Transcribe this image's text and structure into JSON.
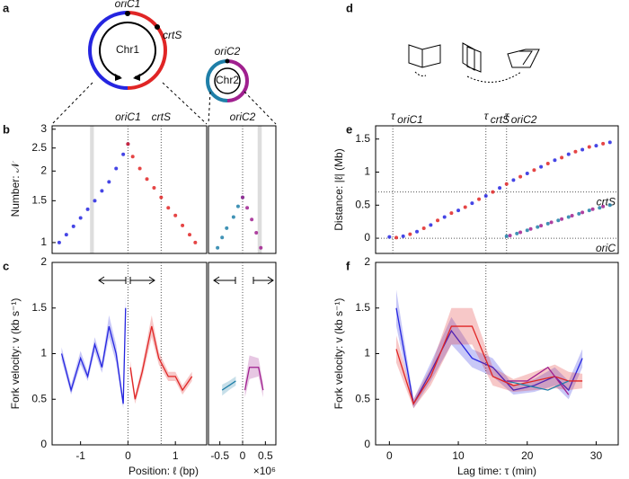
{
  "diagram_a": {
    "letter": "a",
    "labels": [
      "oriC1",
      "crtS",
      "Chr1",
      "oriC2",
      "Chr2"
    ]
  },
  "diagram_d": {
    "letter": "d"
  },
  "chart_data": [
    {
      "type": "scatter",
      "panel": "b",
      "ylabel": "Number: 𝒩",
      "log_y": true,
      "xlim": [
        -1.6,
        1.66
      ],
      "ylim": [
        0.9,
        3.1
      ],
      "yticks": [
        1,
        1.5,
        2,
        2.5,
        3
      ],
      "vlines": [
        {
          "x": 0,
          "label": "oriC1"
        },
        {
          "x": 0.7,
          "label": "crtS"
        }
      ],
      "shaded": [
        [
          -0.8,
          -0.72
        ]
      ],
      "series": [
        {
          "color": "#2525e0",
          "x": [
            -1.45,
            -1.3,
            -1.15,
            -1.0,
            -0.85,
            -0.7,
            -0.55,
            -0.4,
            -0.25,
            -0.1,
            0
          ],
          "values": [
            1.0,
            1.08,
            1.17,
            1.27,
            1.38,
            1.5,
            1.65,
            1.8,
            2.05,
            2.35,
            2.6
          ]
        },
        {
          "color": "#e02525",
          "x": [
            0,
            0.1,
            0.25,
            0.4,
            0.55,
            0.7,
            0.85,
            1.0,
            1.15,
            1.3,
            1.42
          ],
          "values": [
            2.6,
            2.3,
            2.05,
            1.85,
            1.7,
            1.55,
            1.4,
            1.3,
            1.18,
            1.08,
            1.0
          ]
        }
      ]
    },
    {
      "type": "scatter",
      "log_y": true,
      "xlim": [
        -0.75,
        0.73
      ],
      "ylim": [
        0.9,
        3.1
      ],
      "vlines": [
        {
          "x": 0,
          "label": "oriC2"
        }
      ],
      "shaded": [
        [
          0.33,
          0.42
        ]
      ],
      "series": [
        {
          "color": "#1f7fa8",
          "x": [
            -0.55,
            -0.45,
            -0.35,
            -0.2,
            -0.1,
            0
          ],
          "values": [
            0.95,
            1.05,
            1.15,
            1.28,
            1.42,
            1.55
          ]
        },
        {
          "color": "#a0208f",
          "x": [
            0,
            0.1,
            0.2,
            0.3,
            0.4
          ],
          "values": [
            1.55,
            1.4,
            1.25,
            1.1,
            0.95
          ]
        }
      ]
    },
    {
      "type": "line",
      "panel": "c",
      "ylabel": "Fork velocity: v (kb s⁻¹)",
      "xlabel": "Position: ℓ (bp)",
      "xlim": [
        -1.6,
        1.66
      ],
      "ylim": [
        0,
        2
      ],
      "yticks": [
        0,
        0.5,
        1,
        1.5,
        2
      ],
      "xticks": [
        -1,
        0,
        1
      ],
      "vlines": [
        {
          "x": 0
        },
        {
          "x": 0.7
        }
      ],
      "series": [
        {
          "color": "#2525e0",
          "x": [
            -1.4,
            -1.2,
            -1.0,
            -0.85,
            -0.7,
            -0.55,
            -0.4,
            -0.25,
            -0.1,
            -0.05
          ],
          "values": [
            1.0,
            0.6,
            0.95,
            0.75,
            1.1,
            0.85,
            1.3,
            1.0,
            0.45,
            1.5
          ],
          "lower": [
            0.93,
            0.55,
            0.88,
            0.7,
            1.02,
            0.79,
            1.18,
            0.9,
            0.4,
            1.35
          ],
          "upper": [
            1.07,
            0.66,
            1.03,
            0.8,
            1.18,
            0.91,
            1.42,
            1.1,
            0.5,
            1.65
          ]
        },
        {
          "color": "#e02525",
          "x": [
            0.05,
            0.15,
            0.3,
            0.5,
            0.65,
            0.85,
            1.0,
            1.15,
            1.35
          ],
          "values": [
            0.85,
            0.5,
            0.8,
            1.3,
            0.95,
            0.75,
            0.75,
            0.6,
            0.75
          ],
          "lower": [
            0.78,
            0.45,
            0.73,
            1.18,
            0.88,
            0.7,
            0.7,
            0.55,
            0.7
          ],
          "upper": [
            0.92,
            0.55,
            0.87,
            1.42,
            1.02,
            0.8,
            0.8,
            0.65,
            0.8
          ]
        }
      ]
    },
    {
      "type": "line",
      "xlim": [
        -0.75,
        0.73
      ],
      "ylim": [
        0,
        2
      ],
      "xticks": [
        -0.5,
        0,
        0.5
      ],
      "x_multiplier": "×10⁶",
      "vlines": [
        {
          "x": 0
        }
      ],
      "series": [
        {
          "color": "#1f7fa8",
          "x": [
            -0.45,
            -0.3,
            -0.15
          ],
          "values": [
            0.6,
            0.65,
            0.7
          ],
          "lower": [
            0.54,
            0.6,
            0.65
          ],
          "upper": [
            0.66,
            0.7,
            0.75
          ]
        },
        {
          "color": "#a0208f",
          "x": [
            0.05,
            0.15,
            0.35,
            0.45
          ],
          "values": [
            0.6,
            0.85,
            0.85,
            0.6
          ],
          "lower": [
            0.52,
            0.72,
            0.75,
            0.52
          ],
          "upper": [
            0.68,
            0.98,
            0.95,
            0.68
          ]
        }
      ]
    },
    {
      "type": "scatter",
      "panel": "e",
      "ylabel": "Distance: |ℓ| (Mb)",
      "xlim": [
        -2,
        33.2
      ],
      "ylim": [
        -0.23,
        1.7
      ],
      "yticks": [
        0,
        0.5,
        1,
        1.5
      ],
      "vlines": [
        {
          "x": 0.5,
          "label": "τ",
          "sub": "oriC1"
        },
        {
          "x": 14,
          "label": "τ",
          "sub": "crtS"
        },
        {
          "x": 17,
          "label": "τ",
          "sub": "oriC2"
        }
      ],
      "hlines": [
        {
          "y": 0.7,
          "label": "crtS"
        },
        {
          "y": 0,
          "label": "oriC"
        }
      ],
      "series": [
        {
          "color": "#2525e0",
          "x": [
            0,
            2,
            4,
            6,
            8,
            10,
            12,
            14,
            16,
            18,
            20,
            22,
            24,
            26,
            28,
            30,
            32
          ],
          "values": [
            0.02,
            0.03,
            0.1,
            0.2,
            0.32,
            0.42,
            0.53,
            0.64,
            0.76,
            0.88,
            0.98,
            1.08,
            1.18,
            1.27,
            1.34,
            1.4,
            1.45
          ]
        },
        {
          "color": "#e02525",
          "x": [
            1,
            3,
            5,
            7,
            9,
            11,
            13,
            15,
            17,
            19,
            21,
            23,
            25,
            27,
            29,
            31
          ],
          "values": [
            0.01,
            0.06,
            0.15,
            0.27,
            0.38,
            0.47,
            0.59,
            0.7,
            0.82,
            0.93,
            1.03,
            1.13,
            1.22,
            1.31,
            1.38,
            1.43
          ]
        },
        {
          "color": "#1f7fa8",
          "x": [
            17,
            18.5,
            20,
            21.5,
            23,
            24.5,
            26,
            27.5,
            29,
            30.5,
            32
          ],
          "values": [
            0.03,
            0.07,
            0.12,
            0.17,
            0.22,
            0.27,
            0.32,
            0.37,
            0.42,
            0.46,
            0.5
          ]
        },
        {
          "color": "#a0208f",
          "x": [
            17.5,
            19,
            20.5,
            22,
            23.5,
            25,
            26.5,
            28,
            29.5,
            31
          ],
          "values": [
            0.04,
            0.09,
            0.14,
            0.19,
            0.24,
            0.29,
            0.34,
            0.39,
            0.44,
            0.48
          ]
        }
      ]
    },
    {
      "type": "line",
      "panel": "f",
      "ylabel": "Fork velocity: v (kb s⁻¹)",
      "xlabel": "Lag time: τ (min)",
      "xlim": [
        -2,
        33.2
      ],
      "ylim": [
        0,
        2
      ],
      "xticks": [
        0,
        10,
        20,
        30
      ],
      "yticks": [
        0,
        0.5,
        1,
        1.5,
        2
      ],
      "vlines": [
        {
          "x": 14
        }
      ],
      "series": [
        {
          "color": "#2525e0",
          "x": [
            1,
            3.5,
            6,
            9,
            12,
            15,
            18,
            21,
            24,
            26,
            28
          ],
          "values": [
            1.5,
            0.45,
            0.8,
            1.25,
            0.95,
            0.85,
            0.6,
            0.65,
            0.75,
            0.6,
            0.95
          ],
          "lower": [
            1.3,
            0.4,
            0.7,
            1.1,
            0.85,
            0.75,
            0.55,
            0.58,
            0.65,
            0.5,
            0.85
          ],
          "upper": [
            1.7,
            0.5,
            0.9,
            1.4,
            1.05,
            0.95,
            0.65,
            0.72,
            0.85,
            0.7,
            1.05
          ]
        },
        {
          "color": "#e02525",
          "x": [
            1,
            3.5,
            6,
            9,
            12,
            15,
            18,
            21,
            24,
            26,
            28
          ],
          "values": [
            1.05,
            0.45,
            0.75,
            1.3,
            1.3,
            0.75,
            0.65,
            0.7,
            0.75,
            0.7,
            0.7
          ],
          "lower": [
            0.9,
            0.4,
            0.65,
            1.1,
            1.1,
            0.65,
            0.58,
            0.6,
            0.62,
            0.6,
            0.62
          ],
          "upper": [
            1.2,
            0.5,
            0.85,
            1.5,
            1.5,
            0.85,
            0.72,
            0.8,
            0.88,
            0.8,
            0.78
          ]
        },
        {
          "color": "#1f7fa8",
          "x": [
            17,
            20,
            23,
            26
          ],
          "values": [
            0.7,
            0.65,
            0.6,
            0.7
          ]
        },
        {
          "color": "#a0208f",
          "x": [
            17,
            20,
            23,
            26
          ],
          "values": [
            0.7,
            0.7,
            0.85,
            0.55
          ]
        }
      ]
    }
  ]
}
